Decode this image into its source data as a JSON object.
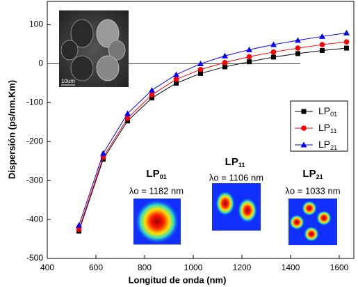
{
  "chart_data": {
    "type": "line",
    "x_label": "Longitud de onda (nm)",
    "y_label": "Dispersión (ps/nm.Km)",
    "x": [
      530,
      630,
      730,
      830,
      930,
      1030,
      1130,
      1230,
      1330,
      1430,
      1530,
      1630
    ],
    "series": [
      {
        "name": "LP",
        "name_sub": "01",
        "color": "#000000",
        "marker": "square",
        "values": [
          -430,
          -245,
          -147,
          -88,
          -50,
          -25,
          -8,
          5,
          17,
          26,
          34,
          40
        ]
      },
      {
        "name": "LP",
        "name_sub": "11",
        "color": "#ff0000",
        "marker": "circle",
        "values": [
          -425,
          -240,
          -140,
          -80,
          -40,
          -15,
          3,
          18,
          30,
          40,
          49,
          56
        ]
      },
      {
        "name": "LP",
        "name_sub": "21",
        "color": "#0000ff",
        "marker": "triangle",
        "values": [
          -415,
          -230,
          -128,
          -68,
          -28,
          0,
          20,
          36,
          49,
          60,
          70,
          79
        ]
      }
    ],
    "xlim": [
      400,
      1660
    ],
    "xticks": [
      400,
      600,
      800,
      1000,
      1200,
      1400,
      1600
    ],
    "ylim": [
      -500,
      160
    ],
    "yticks": [
      -500,
      -400,
      -300,
      -200,
      -100,
      0,
      100
    ],
    "reference_line": {
      "y": 0,
      "x_end": 1440
    },
    "inset_scale": "10um",
    "modes": [
      {
        "label": "LP",
        "sub": "01",
        "wavelength": "λo = 1182 nm"
      },
      {
        "label": "LP",
        "sub": "11",
        "wavelength": "λo = 1106 nm"
      },
      {
        "label": "LP",
        "sub": "21",
        "wavelength": "λo = 1033 nm"
      }
    ]
  }
}
